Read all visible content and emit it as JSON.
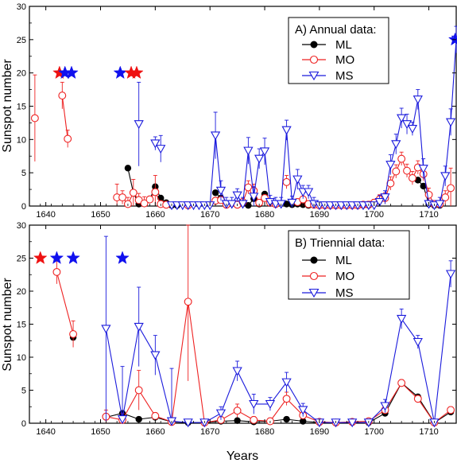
{
  "colors": {
    "ML": "#000000",
    "MO": "#ee2222",
    "MS": "#1a1adc",
    "star_red": "#ee1111",
    "star_blue": "#1010ee"
  },
  "chart_data": [
    {
      "type": "scatter",
      "panel": "top",
      "legend_title": "A) Annual data:",
      "legend_position": "top-right",
      "xlabel": "",
      "ylabel": "Sunspot number",
      "xlim": [
        1637,
        1715
      ],
      "ylim": [
        0,
        30
      ],
      "xticks": [
        1640,
        1650,
        1660,
        1670,
        1680,
        1690,
        1700,
        1710
      ],
      "yticks": [
        0,
        5,
        10,
        15,
        20,
        25,
        30
      ],
      "series": [
        {
          "name": "ML",
          "marker": "filled-circle",
          "color": "#000000",
          "x": [
            1655,
            1656,
            1657,
            1659,
            1660,
            1661,
            1662,
            1663,
            1664,
            1671,
            1672,
            1673,
            1677,
            1678,
            1679,
            1680,
            1681,
            1684,
            1685,
            1686,
            1687,
            1688,
            1708,
            1709,
            1710,
            1711,
            1712
          ],
          "y": [
            5.7,
            2.0,
            0.3,
            1.0,
            2.9,
            1.2,
            0.5,
            0.1,
            0.1,
            2.0,
            1.2,
            0.2,
            0.1,
            1.1,
            0.3,
            1.8,
            0.4,
            0.3,
            0.2,
            0.3,
            0.2,
            0.1,
            3.9,
            3.0,
            0.3,
            0.1,
            0.1
          ],
          "err": []
        },
        {
          "name": "MO",
          "marker": "open-circle",
          "color": "#ee2222",
          "x": [
            1638,
            1643,
            1644,
            1653,
            1654,
            1655,
            1656,
            1657,
            1658,
            1659,
            1660,
            1661,
            1662,
            1666,
            1671,
            1672,
            1673,
            1675,
            1676,
            1677,
            1678,
            1679,
            1680,
            1681,
            1682,
            1684,
            1686,
            1687,
            1688,
            1689,
            1690,
            1691,
            1692,
            1693,
            1694,
            1695,
            1696,
            1697,
            1698,
            1699,
            1700,
            1701,
            1702,
            1703,
            1704,
            1705,
            1706,
            1707,
            1708,
            1709,
            1710,
            1711,
            1712,
            1713,
            1714
          ],
          "y": [
            13.2,
            16.6,
            10.1,
            1.3,
            1.3,
            0.3,
            2.0,
            0.9,
            0.4,
            1.0,
            2.1,
            0.3,
            0.2,
            0.1,
            0.8,
            0.9,
            0.2,
            0.2,
            0.6,
            2.8,
            2.3,
            0.5,
            1.2,
            0.5,
            0.3,
            3.6,
            0.6,
            1.0,
            0.3,
            0.2,
            0.1,
            0.1,
            0.1,
            0.1,
            0.1,
            0.1,
            0.1,
            0.1,
            0.2,
            0.2,
            0.5,
            1.0,
            1.2,
            3.4,
            5.2,
            7.1,
            5.3,
            4.2,
            5.8,
            4.8,
            1.7,
            0.3,
            0.3,
            1.3,
            2.7
          ],
          "err": [
            6.5,
            2.0,
            1.3,
            2.0,
            1.0,
            1.0,
            2.0,
            1.0,
            1.0,
            0.5,
            2.5,
            0.5,
            0.5,
            0.3,
            0.5,
            0.5,
            0.5,
            0.5,
            0.5,
            1.0,
            1.0,
            0.5,
            0.5,
            0.5,
            0.5,
            1.0,
            0.5,
            1.0,
            0.5,
            0.5,
            0.3,
            0.3,
            0.3,
            0.3,
            0.3,
            0.3,
            0.3,
            0.3,
            0.3,
            0.5,
            0.5,
            0.7,
            0.8,
            1.0,
            1.0,
            1.0,
            1.0,
            1.0,
            1.0,
            1.0,
            1.0,
            0.5,
            0.5,
            1.0,
            3.0
          ]
        },
        {
          "name": "MS",
          "marker": "open-triangle-down",
          "color": "#1a1adc",
          "x": [
            1657,
            1660,
            1661,
            1663,
            1664,
            1665,
            1666,
            1667,
            1668,
            1669,
            1670,
            1671,
            1672,
            1673,
            1674,
            1675,
            1676,
            1677,
            1678,
            1679,
            1680,
            1681,
            1682,
            1683,
            1684,
            1685,
            1686,
            1687,
            1688,
            1689,
            1690,
            1691,
            1692,
            1693,
            1694,
            1695,
            1696,
            1697,
            1698,
            1699,
            1700,
            1701,
            1702,
            1703,
            1704,
            1705,
            1706,
            1707,
            1708,
            1709,
            1710,
            1711,
            1712,
            1713,
            1714,
            1715
          ],
          "y": [
            12.3,
            9.4,
            8.6,
            0.1,
            0.1,
            0.1,
            0.1,
            0.1,
            0.1,
            0.1,
            0.1,
            10.6,
            2.3,
            0.3,
            0.3,
            1.6,
            0.3,
            8.3,
            1.4,
            7.1,
            8.2,
            0.6,
            0.3,
            0.3,
            11.4,
            0.5,
            4.0,
            2.1,
            2.1,
            0.3,
            0.1,
            0.1,
            0.1,
            0.1,
            0.1,
            0.1,
            0.1,
            0.1,
            0.1,
            0.1,
            0.1,
            0.6,
            1.3,
            6.2,
            9.3,
            13.2,
            12.3,
            11.6,
            16.0,
            5.6,
            0.3,
            0.1,
            0.3,
            4.5,
            12.6,
            25.0
          ],
          "err": [
            6.3,
            1.0,
            2.0,
            0.5,
            0.5,
            0.5,
            0.5,
            0.5,
            0.5,
            0.5,
            0.5,
            3.5,
            1.5,
            1.0,
            1.0,
            1.0,
            1.0,
            2.0,
            1.5,
            1.5,
            2.0,
            1.0,
            1.0,
            1.0,
            1.5,
            1.0,
            1.5,
            1.0,
            1.0,
            1.0,
            0.5,
            0.5,
            0.5,
            0.5,
            0.5,
            0.5,
            0.5,
            0.5,
            0.5,
            0.5,
            0.5,
            1.0,
            1.0,
            1.5,
            1.5,
            1.5,
            1.5,
            1.0,
            1.5,
            1.5,
            0.5,
            0.5,
            1.0,
            1.5,
            2.0,
            2.0
          ]
        }
      ],
      "stars": [
        {
          "x": 1642.5,
          "y": 20,
          "color": "red"
        },
        {
          "x": 1643.5,
          "y": 20,
          "color": "blue"
        },
        {
          "x": 1644.7,
          "y": 20,
          "color": "blue"
        },
        {
          "x": 1653.6,
          "y": 20,
          "color": "blue"
        },
        {
          "x": 1655.6,
          "y": 20,
          "color": "red"
        },
        {
          "x": 1656.6,
          "y": 20,
          "color": "red"
        },
        {
          "x": 1714.8,
          "y": 25,
          "color": "blue"
        }
      ]
    },
    {
      "type": "line",
      "panel": "bottom",
      "legend_title": "B) Triennial data:",
      "legend_position": "top-right",
      "xlabel": "Years",
      "ylabel": "Sunspot number",
      "xlim": [
        1637,
        1715
      ],
      "ylim": [
        0,
        30
      ],
      "xticks": [
        1640,
        1650,
        1660,
        1670,
        1680,
        1690,
        1700,
        1710
      ],
      "yticks": [
        0,
        5,
        10,
        15,
        20,
        25,
        30
      ],
      "series": [
        {
          "name": "ML",
          "marker": "filled-circle",
          "color": "#000000",
          "x": [
            1645,
            1651,
            1654,
            1657,
            1660,
            1663,
            1666,
            1669,
            1672,
            1675,
            1678,
            1681,
            1684,
            1687,
            1690,
            1693,
            1696,
            1699,
            1702,
            1705,
            1708,
            1711,
            1714
          ],
          "y": [
            13.0,
            0.9,
            1.5,
            0.6,
            0.9,
            0.2,
            0.1,
            0.1,
            0.3,
            0.4,
            0.2,
            0.3,
            0.6,
            0.3,
            0.1,
            0.1,
            0.1,
            0.1,
            1.5,
            6.1,
            4.0,
            0.1,
            1.7
          ],
          "err": []
        },
        {
          "name": "MO",
          "marker": "open-circle",
          "color": "#ee2222",
          "x": [
            1642,
            1645,
            1651,
            1654,
            1657,
            1660,
            1663,
            1666,
            1669,
            1672,
            1675,
            1678,
            1681,
            1684,
            1687,
            1690,
            1693,
            1696,
            1699,
            1702,
            1705,
            1708,
            1711,
            1714
          ],
          "y": [
            22.9,
            13.5,
            1.0,
            0.5,
            5.0,
            1.1,
            0.2,
            18.4,
            0.1,
            0.5,
            1.9,
            0.5,
            0.3,
            3.7,
            1.2,
            0.2,
            0.1,
            0.2,
            0.3,
            2.0,
            6.1,
            3.7,
            0.1,
            2.0
          ],
          "err": [
            1.8,
            2.0,
            1.0,
            1.0,
            3.0,
            0.5,
            0.5,
            12.0,
            0.3,
            0.5,
            1.0,
            0.5,
            0.5,
            1.0,
            0.5,
            0.3,
            0.3,
            0.3,
            0.3,
            0.5,
            0.5,
            0.5,
            0.3,
            0.5
          ]
        },
        {
          "name": "MS",
          "marker": "open-triangle-down",
          "color": "#1a1adc",
          "x": [
            1651,
            1654,
            1657,
            1660,
            1663,
            1666,
            1669,
            1672,
            1675,
            1678,
            1681,
            1684,
            1687,
            1690,
            1693,
            1696,
            1699,
            1702,
            1705,
            1708,
            1711,
            1714
          ],
          "y": [
            14.3,
            0.6,
            14.6,
            10.3,
            0.3,
            0.1,
            0.1,
            1.5,
            7.9,
            2.9,
            2.9,
            6.2,
            2.0,
            0.1,
            0.1,
            0.1,
            0.1,
            2.6,
            15.8,
            12.3,
            0.1,
            22.6
          ],
          "err": [
            14.0,
            8.0,
            6.0,
            3.0,
            8.0,
            0.5,
            0.5,
            1.0,
            1.5,
            1.5,
            1.0,
            1.5,
            1.0,
            0.5,
            0.5,
            0.5,
            0.5,
            1.0,
            1.5,
            1.0,
            0.5,
            2.0
          ]
        }
      ],
      "stars": [
        {
          "x": 1639,
          "y": 25,
          "color": "red"
        },
        {
          "x": 1642,
          "y": 25,
          "color": "blue"
        },
        {
          "x": 1645,
          "y": 25,
          "color": "blue"
        },
        {
          "x": 1654,
          "y": 25,
          "color": "blue"
        }
      ]
    }
  ]
}
